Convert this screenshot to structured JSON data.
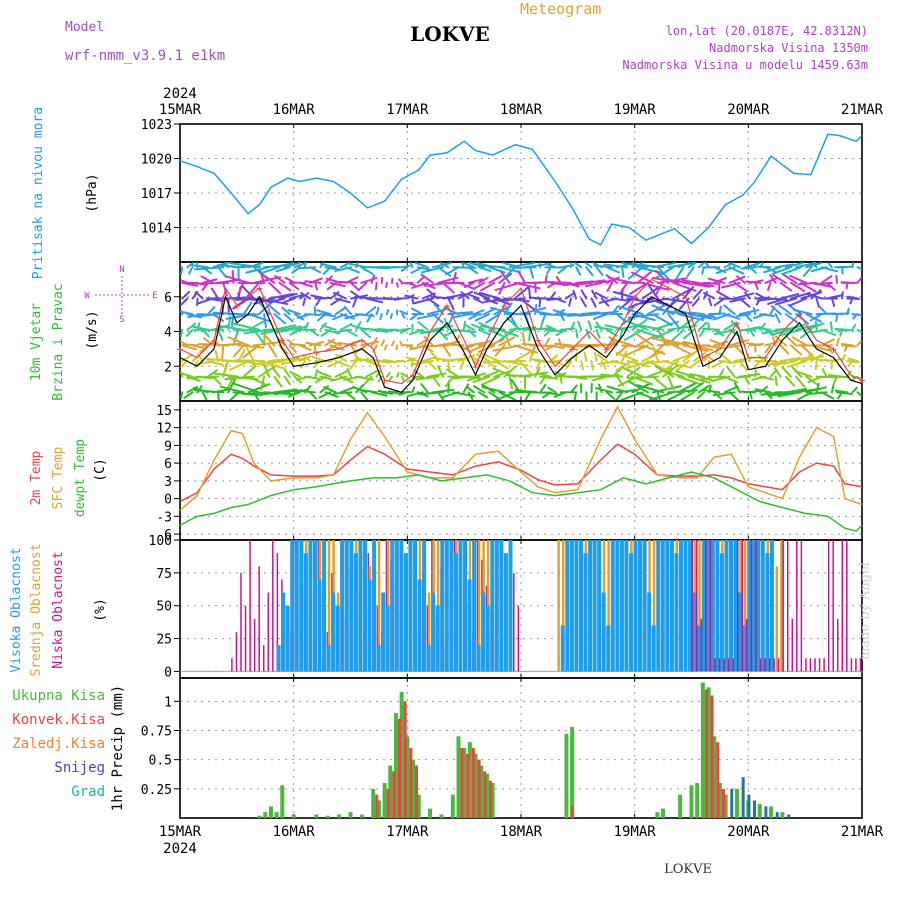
{
  "header": {
    "model_label": "Model",
    "model_name": "wrf-nmm_v3.9.1 e1km",
    "station_name": "LOKVE",
    "product": "Meteogram",
    "coords": "lon,lat (20.0187E, 42.8312N)",
    "altitude": "Nadmorska Visina 1350m",
    "model_altitude": "Nadmorska Visina u modelu 1459.63m",
    "footer_station": "LOKVE",
    "credit": "made by Angel"
  },
  "axis": {
    "year": "2024",
    "dates": [
      "15MAR",
      "16MAR",
      "17MAR",
      "18MAR",
      "19MAR",
      "20MAR",
      "21MAR"
    ]
  },
  "colors": {
    "pressure": "#1ea0e6",
    "temp2m": "#e84545",
    "sfc": "#e0a030",
    "dewpt": "#33bb33",
    "high_cloud": "#1e9ee8",
    "mid_cloud": "#e0a030",
    "low_cloud": "#c01890",
    "total_precip": "#4ab83a",
    "conv_precip": "#e84545",
    "frz_precip": "#f08030",
    "snow": "#4444cc",
    "hail": "#20b0b0"
  },
  "chart_data": [
    {
      "type": "line",
      "panel": "pressure",
      "title": "",
      "ylabel": [
        "Pritisak na nivou mora",
        "(hPa)"
      ],
      "xlim": [
        0,
        6
      ],
      "ylim": [
        1011,
        1023
      ],
      "yticks": [
        1014,
        1017,
        1020,
        1023
      ],
      "series": [
        {
          "name": "Pritisak na nivou mora",
          "x": [
            0,
            0.15,
            0.3,
            0.45,
            0.6,
            0.7,
            0.8,
            0.95,
            1.05,
            1.2,
            1.35,
            1.5,
            1.65,
            1.8,
            1.95,
            2.1,
            2.2,
            2.35,
            2.5,
            2.6,
            2.75,
            2.95,
            3.1,
            3.3,
            3.45,
            3.6,
            3.7,
            3.8,
            3.95,
            4.1,
            4.2,
            4.35,
            4.5,
            4.65,
            4.8,
            4.95,
            5.05,
            5.2,
            5.4,
            5.55,
            5.7,
            5.8,
            5.95,
            6
          ],
          "values": [
            1019.8,
            1019.3,
            1018.7,
            1017.0,
            1015.2,
            1016.0,
            1017.5,
            1018.3,
            1018.0,
            1018.3,
            1018.0,
            1017.0,
            1015.7,
            1016.3,
            1018.2,
            1019.0,
            1020.3,
            1020.5,
            1021.5,
            1020.7,
            1020.3,
            1021.2,
            1020.8,
            1018.0,
            1015.7,
            1013.0,
            1012.5,
            1014.3,
            1014.0,
            1012.9,
            1013.3,
            1013.9,
            1012.6,
            1014.0,
            1016.0,
            1016.8,
            1017.9,
            1020.2,
            1018.7,
            1018.6,
            1022.1,
            1022.0,
            1021.5,
            1022.0
          ]
        }
      ]
    },
    {
      "type": "line",
      "panel": "wind",
      "title": "",
      "ylabel": [
        "10m Vjetar",
        "Brzina i Pravac",
        "(m/s)"
      ],
      "direction_legend": [
        "N",
        "S",
        "W",
        "E"
      ],
      "xlim": [
        0,
        6
      ],
      "ylim": [
        0,
        8
      ],
      "yticks": [
        2,
        4,
        6
      ],
      "series": [
        {
          "name": "speed",
          "x": [
            0,
            0.15,
            0.3,
            0.4,
            0.5,
            0.6,
            0.7,
            0.8,
            0.9,
            1.0,
            1.2,
            1.4,
            1.6,
            1.7,
            1.8,
            1.95,
            2.05,
            2.2,
            2.35,
            2.5,
            2.6,
            2.7,
            2.85,
            3.0,
            3.15,
            3.3,
            3.45,
            3.6,
            3.75,
            3.9,
            4.0,
            4.15,
            4.3,
            4.45,
            4.6,
            4.75,
            4.9,
            5.0,
            5.15,
            5.3,
            5.45,
            5.6,
            5.75,
            5.9,
            6
          ],
          "values": [
            2.5,
            2.0,
            3.0,
            6.0,
            4.5,
            5.0,
            6.0,
            4.5,
            3.0,
            2.0,
            2.2,
            2.5,
            3.0,
            2.5,
            0.8,
            0.5,
            1.2,
            3.5,
            4.5,
            2.8,
            1.5,
            3.0,
            4.5,
            5.5,
            3.0,
            1.5,
            2.5,
            3.2,
            2.5,
            3.8,
            5.0,
            6.0,
            5.5,
            5.0,
            2.0,
            2.5,
            4.0,
            1.8,
            2.0,
            3.5,
            4.5,
            3.0,
            2.5,
            1.2,
            1.0
          ]
        },
        {
          "name": "gust",
          "x": [
            0,
            0.15,
            0.3,
            0.4,
            0.5,
            0.6,
            0.7,
            0.8,
            0.9,
            1.0,
            1.2,
            1.4,
            1.6,
            1.7,
            1.8,
            1.95,
            2.05,
            2.2,
            2.35,
            2.5,
            2.6,
            2.7,
            2.85,
            3.0,
            3.15,
            3.3,
            3.45,
            3.6,
            3.75,
            3.9,
            4.0,
            4.15,
            4.3,
            4.45,
            4.6,
            4.75,
            4.9,
            5.0,
            5.15,
            5.3,
            5.45,
            5.6,
            5.75,
            5.9,
            6
          ],
          "values": [
            3.0,
            2.5,
            3.5,
            6.5,
            5.5,
            6.0,
            6.5,
            5.0,
            3.5,
            2.5,
            2.8,
            3.0,
            3.5,
            3.0,
            1.2,
            1.0,
            1.5,
            4.0,
            5.5,
            3.5,
            2.0,
            3.5,
            5.5,
            6.5,
            3.5,
            2.0,
            3.0,
            4.0,
            3.0,
            4.5,
            6.0,
            7.0,
            6.5,
            6.0,
            2.5,
            3.0,
            4.5,
            2.5,
            2.5,
            4.0,
            5.0,
            3.5,
            3.0,
            1.5,
            1.2
          ]
        }
      ]
    },
    {
      "type": "line",
      "panel": "temperature",
      "title": "",
      "ylabel": [
        "2m Temp",
        "SFC Temp",
        "dewpt Temp",
        "(C)"
      ],
      "xlim": [
        0,
        6
      ],
      "ylim": [
        -7,
        16.5
      ],
      "yticks": [
        -6,
        -3,
        0,
        3,
        6,
        9,
        12,
        15
      ],
      "series": [
        {
          "name": "2m Temp",
          "x": [
            0,
            0.15,
            0.3,
            0.45,
            0.55,
            0.65,
            0.8,
            1.0,
            1.2,
            1.35,
            1.5,
            1.65,
            1.8,
            2.0,
            2.2,
            2.4,
            2.6,
            2.8,
            3.0,
            3.15,
            3.3,
            3.5,
            3.7,
            3.85,
            4.0,
            4.2,
            4.4,
            4.55,
            4.7,
            4.85,
            5.0,
            5.15,
            5.3,
            5.45,
            5.6,
            5.75,
            5.85,
            6
          ],
          "values": [
            -0.5,
            1.0,
            5.0,
            7.5,
            6.8,
            5.5,
            4.0,
            3.8,
            3.8,
            4.0,
            6.5,
            8.8,
            7.5,
            5.0,
            4.5,
            4.0,
            5.5,
            6.2,
            4.8,
            3.2,
            2.3,
            2.5,
            6.5,
            9.2,
            7.5,
            4.0,
            3.8,
            3.8,
            4.0,
            3.5,
            2.5,
            2.0,
            1.5,
            4.5,
            6.0,
            5.5,
            2.5,
            2.0
          ]
        },
        {
          "name": "SFC Temp",
          "x": [
            0,
            0.15,
            0.3,
            0.45,
            0.55,
            0.65,
            0.8,
            1.0,
            1.2,
            1.35,
            1.5,
            1.65,
            1.8,
            2.0,
            2.2,
            2.4,
            2.6,
            2.8,
            3.0,
            3.15,
            3.3,
            3.5,
            3.7,
            3.85,
            4.0,
            4.2,
            4.4,
            4.55,
            4.7,
            4.85,
            5.0,
            5.15,
            5.3,
            5.45,
            5.6,
            5.75,
            5.85,
            6
          ],
          "values": [
            -2.0,
            0.5,
            6.5,
            11.5,
            11.0,
            6.0,
            3.0,
            3.5,
            3.5,
            4.0,
            10.0,
            14.5,
            10.5,
            4.5,
            3.5,
            3.5,
            7.5,
            8.0,
            4.5,
            2.0,
            1.0,
            1.5,
            10.0,
            15.5,
            10.0,
            4.0,
            3.5,
            3.5,
            7.0,
            7.5,
            2.0,
            1.0,
            0.0,
            7.0,
            12.0,
            10.5,
            0.0,
            -1.0
          ]
        },
        {
          "name": "dewpt Temp",
          "x": [
            0,
            0.15,
            0.3,
            0.45,
            0.6,
            0.8,
            1.0,
            1.2,
            1.35,
            1.5,
            1.7,
            1.9,
            2.1,
            2.3,
            2.5,
            2.7,
            2.9,
            3.1,
            3.3,
            3.5,
            3.7,
            3.9,
            4.1,
            4.3,
            4.5,
            4.7,
            4.9,
            5.1,
            5.3,
            5.5,
            5.7,
            5.85,
            5.95,
            6
          ],
          "values": [
            -4.5,
            -3.0,
            -2.5,
            -1.5,
            -1.0,
            0.5,
            1.5,
            2.0,
            2.5,
            3.0,
            3.5,
            3.5,
            4.0,
            3.0,
            3.5,
            4.0,
            3.0,
            1.0,
            0.5,
            1.0,
            1.5,
            3.5,
            2.5,
            3.5,
            4.5,
            3.5,
            1.5,
            -0.5,
            -1.5,
            -2.5,
            -3.0,
            -5.0,
            -5.5,
            -4.5
          ]
        }
      ]
    },
    {
      "type": "bar",
      "panel": "clouds",
      "title": "",
      "ylabel": [
        "Visoka Oblacnost",
        "Srednja Oblacnost",
        "Niska Oblacnost",
        "(%)"
      ],
      "xlim": [
        0,
        6
      ],
      "ylim": [
        -5,
        100
      ],
      "yticks": [
        0,
        25,
        50,
        75,
        100
      ],
      "segments": [
        {
          "name": "Niska Oblacnost",
          "start": 0.45,
          "end": 3.0,
          "pattern": [
            10,
            30,
            75,
            50,
            100,
            40,
            80,
            20,
            60,
            100,
            90,
            70,
            50,
            30,
            100,
            85,
            65,
            45,
            25,
            100
          ]
        },
        {
          "name": "Srednja Oblacnost",
          "start": 1.1,
          "end": 2.8,
          "pattern": [
            100,
            100,
            90,
            100,
            80,
            100,
            100,
            60,
            100,
            100
          ]
        },
        {
          "name": "Visoka Oblacnost",
          "start": 0.85,
          "end": 2.9,
          "pattern": [
            20,
            60,
            50,
            100,
            100,
            100,
            90,
            100,
            100,
            70,
            100
          ]
        },
        {
          "name": "Srednja Oblacnost",
          "start": 3.32,
          "end": 5.3,
          "pattern": [
            100,
            100,
            100,
            100,
            90,
            100,
            100,
            100,
            80,
            100
          ]
        },
        {
          "name": "Visoka Oblacnost",
          "start": 3.35,
          "end": 5.2,
          "pattern": [
            35,
            100,
            100,
            100,
            100,
            90,
            100,
            100,
            100,
            60
          ]
        },
        {
          "name": "Niska Oblacnost",
          "start": 4.5,
          "end": 6.0,
          "pattern": [
            100,
            100,
            40,
            100,
            100,
            10,
            10,
            10,
            10,
            10
          ]
        }
      ]
    },
    {
      "type": "bar",
      "panel": "precipitation",
      "title": "",
      "ylabel": [
        "1hr Precip (mm)"
      ],
      "legend": [
        "Ukupna Kisa",
        "Konvek.Kisa",
        "Zaledj.Kisa",
        "Snijeg",
        "Grad"
      ],
      "xlim": [
        0,
        6
      ],
      "ylim": [
        0,
        1.2
      ],
      "yticks": [
        0.25,
        0.5,
        0.75,
        1
      ],
      "total": {
        "x": [
          0.7,
          0.75,
          0.8,
          0.85,
          0.9,
          1.0,
          1.2,
          1.3,
          1.4,
          1.5,
          1.6,
          1.7,
          1.75,
          1.8,
          1.85,
          1.9,
          1.95,
          2.0,
          2.05,
          2.1,
          2.2,
          2.3,
          2.4,
          2.45,
          2.5,
          2.55,
          2.6,
          2.65,
          2.7,
          2.75,
          3.4,
          3.45,
          4.2,
          4.25,
          4.4,
          4.5,
          4.55,
          4.6,
          4.65,
          4.7,
          4.75,
          4.8,
          4.9,
          5.0,
          5.1,
          5.2,
          5.3
        ],
        "values": [
          0.02,
          0.05,
          0.1,
          0.05,
          0.28,
          0.03,
          0.03,
          0.02,
          0.03,
          0.05,
          0.03,
          0.25,
          0.15,
          0.3,
          0.45,
          0.9,
          1.08,
          0.7,
          0.5,
          0.2,
          0.08,
          0.03,
          0.2,
          0.7,
          0.6,
          0.65,
          0.55,
          0.45,
          0.38,
          0.3,
          0.72,
          0.78,
          0.05,
          0.08,
          0.2,
          0.28,
          0.3,
          1.16,
          1.12,
          0.7,
          0.3,
          0.2,
          0.25,
          0.15,
          0.12,
          0.1,
          0.05
        ]
      },
      "convective": {
        "x": [
          1.7,
          1.8,
          1.85,
          1.9,
          1.95,
          2.0,
          2.05,
          2.45,
          2.5,
          2.55,
          2.6,
          2.65,
          2.7,
          3.42,
          4.6,
          4.65,
          4.7,
          4.75
        ],
        "values": [
          0.2,
          0.25,
          0.4,
          0.85,
          1.0,
          0.6,
          0.45,
          0.6,
          0.55,
          0.6,
          0.5,
          0.4,
          0.32,
          0.1,
          1.1,
          1.05,
          0.65,
          0.25
        ]
      },
      "snow": {
        "x": [
          4.85,
          4.95,
          5.0,
          5.05,
          5.15,
          5.25,
          5.35
        ],
        "values": [
          0.25,
          0.35,
          0.2,
          0.15,
          0.1,
          0.05,
          0.03
        ]
      }
    }
  ]
}
